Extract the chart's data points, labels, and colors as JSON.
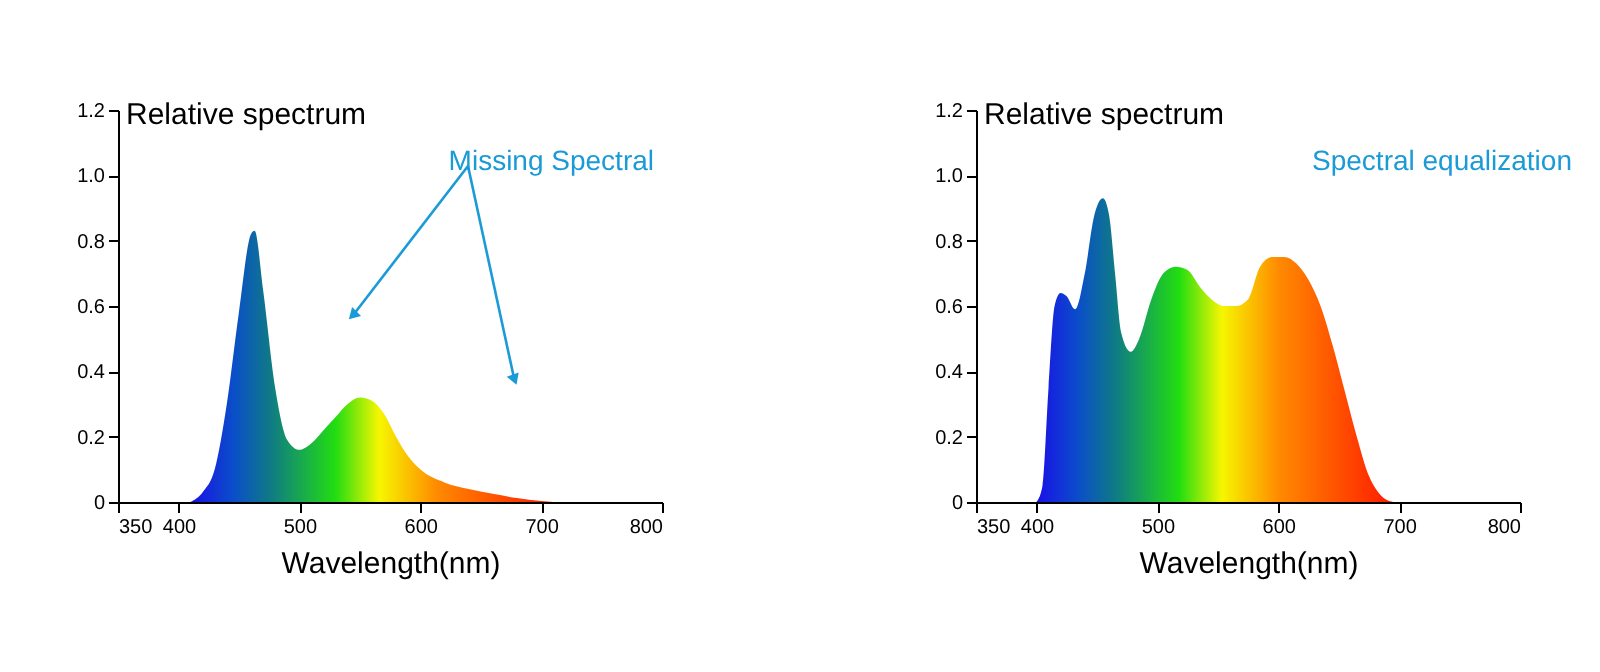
{
  "chart_data": [
    {
      "type": "area",
      "ylabel": "Relative spectrum",
      "xlabel": "Wavelength(nm)",
      "annotations": [
        "Missing Spectral"
      ],
      "x": [
        410,
        420,
        430,
        440,
        450,
        460,
        463,
        470,
        480,
        490,
        500,
        510,
        520,
        530,
        540,
        550,
        560,
        570,
        580,
        590,
        600,
        620,
        640,
        660,
        680,
        700,
        710
      ],
      "series": [
        {
          "color": "#22dd11",
          "values": [
            0,
            0.03,
            0.1,
            0.3,
            0.58,
            0.82,
            0.83,
            0.65,
            0.35,
            0.19,
            0.16,
            0.18,
            0.22,
            0.26,
            0.3,
            0.32,
            0.31,
            0.27,
            0.2,
            0.14,
            0.1,
            0.06,
            0.04,
            0.025,
            0.012,
            0.003,
            0
          ]
        }
      ],
      "xlim": [
        350,
        800
      ],
      "xticks": [
        350,
        400,
        500,
        600,
        700,
        800
      ],
      "ylim": [
        0,
        1.2
      ],
      "yticks": [
        0,
        0.2,
        0.4,
        0.6,
        0.8,
        {
          "value": 1,
          "label": "1.0"
        },
        1.2
      ]
    },
    {
      "type": "area",
      "ylabel": "Relative spectrum",
      "xlabel": "Wavelength(nm)",
      "annotations": [
        "Spectral equalization"
      ],
      "x": [
        400,
        405,
        410,
        415,
        420,
        425,
        432,
        440,
        448,
        455,
        460,
        465,
        470,
        478,
        485,
        495,
        505,
        515,
        525,
        535,
        545,
        555,
        565,
        575,
        585,
        595,
        605,
        615,
        625,
        635,
        645,
        655,
        665,
        675,
        685,
        695
      ],
      "series": [
        {
          "color": "#22dd11",
          "values": [
            0,
            0.05,
            0.35,
            0.6,
            0.64,
            0.63,
            0.59,
            0.7,
            0.88,
            0.93,
            0.88,
            0.7,
            0.52,
            0.46,
            0.5,
            0.62,
            0.7,
            0.72,
            0.71,
            0.66,
            0.62,
            0.6,
            0.6,
            0.62,
            0.72,
            0.75,
            0.75,
            0.73,
            0.68,
            0.6,
            0.48,
            0.34,
            0.2,
            0.08,
            0.02,
            0
          ]
        }
      ],
      "xlim": [
        350,
        800
      ],
      "xticks": [
        350,
        400,
        500,
        600,
        700,
        800
      ],
      "ylim": [
        0,
        1.2
      ],
      "yticks": [
        0,
        0.2,
        0.4,
        0.6,
        0.8,
        {
          "value": 1,
          "label": "1.0"
        },
        1.2
      ]
    }
  ]
}
